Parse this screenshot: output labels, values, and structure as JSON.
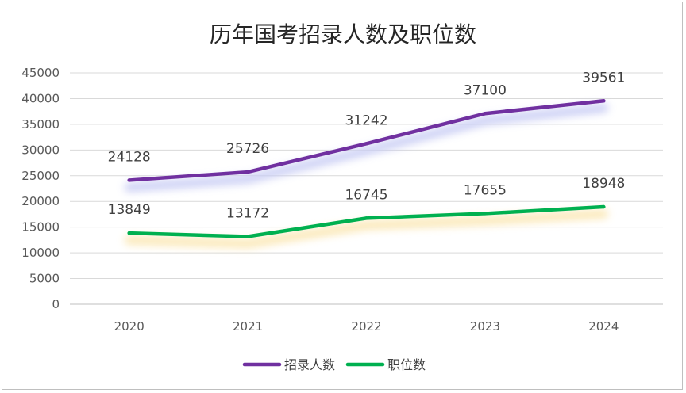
{
  "chart_data": {
    "type": "line",
    "title": "历年国考招录人数及职位数",
    "xlabel": "",
    "ylabel": "",
    "categories": [
      "2020",
      "2021",
      "2022",
      "2023",
      "2024"
    ],
    "ylim": [
      0,
      45000
    ],
    "yticks": [
      0,
      5000,
      10000,
      15000,
      20000,
      25000,
      30000,
      35000,
      40000,
      45000
    ],
    "grid": true,
    "legend_position": "bottom",
    "series": [
      {
        "name": "招录人数",
        "values": [
          24128,
          25726,
          31242,
          37100,
          39561
        ],
        "labels": [
          "24128",
          "25726",
          "31242",
          "37100",
          "39561"
        ],
        "color": "#7030a0",
        "glow": "#c9cdf4"
      },
      {
        "name": "职位数",
        "values": [
          13849,
          13172,
          16745,
          17655,
          18948
        ],
        "labels": [
          "13849",
          "13172",
          "16745",
          "17655",
          "18948"
        ],
        "color": "#00b050",
        "glow": "#fbe7b4"
      }
    ]
  }
}
